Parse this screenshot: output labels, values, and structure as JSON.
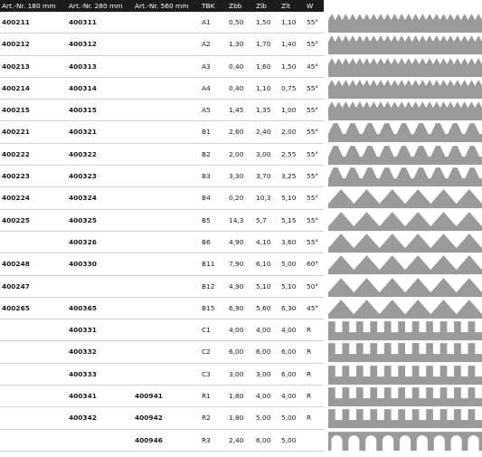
{
  "header": {
    "col1": "Art.-Nr. 180 mm",
    "col2": "Art.-Nr. 280 mm",
    "col3": "Art.-Nr. 560 mm",
    "col4": "TBK",
    "col5": "Zbb",
    "col6": "Zlb",
    "col7": "Zlt",
    "col8": "W"
  },
  "colors": {
    "header_bg": "#1c1c1c",
    "tooth_fill": "#9a9a9a",
    "divider": "#cfcfcf"
  },
  "rows": [
    {
      "a180": "400211",
      "a280": "400311",
      "a560": "",
      "tbk": "A1",
      "zbb": "0,50",
      "zlb": "1,50",
      "zlt": "1,10",
      "w": "55°",
      "shape": "fine-v"
    },
    {
      "a180": "400212",
      "a280": "400312",
      "a560": "",
      "tbk": "A2",
      "zbb": "1,30",
      "zlb": "1,70",
      "zlt": "1,40",
      "w": "55°",
      "shape": "fine-v"
    },
    {
      "a180": "400213",
      "a280": "400313",
      "a560": "",
      "tbk": "A3",
      "zbb": "0,40",
      "zlb": "1,60",
      "zlt": "1,50",
      "w": "45°",
      "shape": "fine-v"
    },
    {
      "a180": "400214",
      "a280": "400314",
      "a560": "",
      "tbk": "A4",
      "zbb": "0,40",
      "zlb": "1,10",
      "zlt": "0,75",
      "w": "55°",
      "shape": "fine-v"
    },
    {
      "a180": "400215",
      "a280": "400315",
      "a560": "",
      "tbk": "A5",
      "zbb": "1,45",
      "zlb": "1,35",
      "zlt": "1,00",
      "w": "55°",
      "shape": "fine-v"
    },
    {
      "a180": "400221",
      "a280": "400321",
      "a560": "",
      "tbk": "B1",
      "zbb": "2,60",
      "zlb": "2,40",
      "zlt": "2,00",
      "w": "55°",
      "shape": "trap"
    },
    {
      "a180": "400222",
      "a280": "400322",
      "a560": "",
      "tbk": "B2",
      "zbb": "2,00",
      "zlb": "3,00",
      "zlt": "2,55",
      "w": "55°",
      "shape": "trap"
    },
    {
      "a180": "400223",
      "a280": "400323",
      "a560": "",
      "tbk": "B3",
      "zbb": "3,30",
      "zlb": "3,70",
      "zlt": "3,25",
      "w": "55°",
      "shape": "trap"
    },
    {
      "a180": "400224",
      "a280": "400324",
      "a560": "",
      "tbk": "B4",
      "zbb": "0,20",
      "zlb": "10,3",
      "zlt": "5,10",
      "w": "55°",
      "shape": "big-v"
    },
    {
      "a180": "400225",
      "a280": "400325",
      "a560": "",
      "tbk": "B5",
      "zbb": "14,3",
      "zlb": "5,7",
      "zlt": "5,15",
      "w": "55°",
      "shape": "big-v"
    },
    {
      "a180": "",
      "a280": "400326",
      "a560": "",
      "tbk": "B6",
      "zbb": "4,90",
      "zlb": "4,10",
      "zlt": "3,60",
      "w": "55°",
      "shape": "big-v"
    },
    {
      "a180": "400248",
      "a280": "400330",
      "a560": "",
      "tbk": "B11",
      "zbb": "7,90",
      "zlb": "6,10",
      "zlt": "5,00",
      "w": "60°",
      "shape": "big-v"
    },
    {
      "a180": "400247",
      "a280": "",
      "a560": "",
      "tbk": "B12",
      "zbb": "4,90",
      "zlb": "5,10",
      "zlt": "5,10",
      "w": "50°",
      "shape": "big-v"
    },
    {
      "a180": "400265",
      "a280": "400365",
      "a560": "",
      "tbk": "B15",
      "zbb": "6,90",
      "zlb": "5,60",
      "zlt": "6,30",
      "w": "45°",
      "shape": "big-v"
    },
    {
      "a180": "",
      "a280": "400331",
      "a560": "",
      "tbk": "C1",
      "zbb": "4,00",
      "zlb": "4,00",
      "zlt": "4,00",
      "w": "R",
      "shape": "rect"
    },
    {
      "a180": "",
      "a280": "400332",
      "a560": "",
      "tbk": "C2",
      "zbb": "6,00",
      "zlb": "6,00",
      "zlt": "6,00",
      "w": "R",
      "shape": "rect"
    },
    {
      "a180": "",
      "a280": "400333",
      "a560": "",
      "tbk": "C3",
      "zbb": "3,00",
      "zlb": "3,00",
      "zlt": "6,00",
      "w": "R",
      "shape": "rect"
    },
    {
      "a180": "",
      "a280": "400341",
      "a560": "400941",
      "tbk": "R1",
      "zbb": "1,80",
      "zlb": "4,00",
      "zlt": "4,00",
      "w": "R",
      "shape": "rect"
    },
    {
      "a180": "",
      "a280": "400342",
      "a560": "400942",
      "tbk": "R2",
      "zbb": "1,80",
      "zlb": "5,00",
      "zlt": "5,00",
      "w": "R",
      "shape": "rect"
    },
    {
      "a180": "",
      "a280": "",
      "a560": "400946",
      "tbk": "R3",
      "zbb": "2,40",
      "zlb": "6,00",
      "zlt": "5,00",
      "w": "",
      "shape": "arch"
    }
  ]
}
